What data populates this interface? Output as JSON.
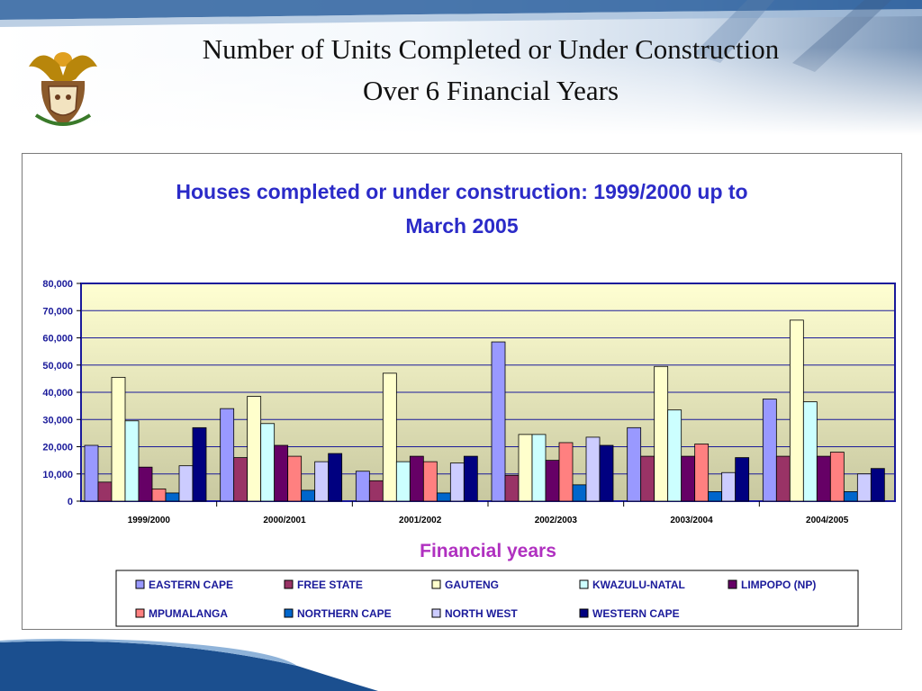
{
  "slide": {
    "title_line1": "Number of Units Completed or Under Construction",
    "title_line2": "Over 6 Financial Years"
  },
  "emblem": {
    "icon": "coat-of-arms-icon"
  },
  "colors": {
    "title_blue": "#2b2bc8",
    "plot_top": "#ffffd2",
    "plot_bottom": "#c8c8a0",
    "grid": "#1a1a9a"
  },
  "chart_data": {
    "type": "bar",
    "title": "Houses completed or under construction:  1999/2000 up to March 2005",
    "title_line1": "Houses completed or under construction:  1999/2000 up to",
    "title_line2": "March 2005",
    "xlabel": "Financial years",
    "ylabel": "",
    "ylim": [
      0,
      80000
    ],
    "yticks": [
      0,
      10000,
      20000,
      30000,
      40000,
      50000,
      60000,
      70000,
      80000
    ],
    "ytick_labels": [
      "0",
      "10,000",
      "20,000",
      "30,000",
      "40,000",
      "50,000",
      "60,000",
      "70,000",
      "80,000"
    ],
    "grid": true,
    "legend_position": "bottom",
    "categories": [
      "1999/2000",
      "2000/2001",
      "2001/2002",
      "2002/2003",
      "2003/2004",
      "2004/2005"
    ],
    "series": [
      {
        "name": "EASTERN CAPE",
        "color": "#9999ff",
        "values": [
          20500,
          34000,
          11000,
          58500,
          27000,
          37500
        ]
      },
      {
        "name": "FREE STATE",
        "color": "#993366",
        "values": [
          7000,
          16000,
          7500,
          9500,
          16500,
          16500
        ]
      },
      {
        "name": "GAUTENG",
        "color": "#ffffcc",
        "values": [
          45500,
          38500,
          47000,
          24500,
          49500,
          66500
        ]
      },
      {
        "name": "KWAZULU-NATAL",
        "color": "#ccffff",
        "values": [
          29500,
          28500,
          14500,
          24500,
          33500,
          36500
        ]
      },
      {
        "name": "LIMPOPO (NP)",
        "color": "#660066",
        "values": [
          12500,
          20500,
          16500,
          15000,
          16500,
          16500
        ]
      },
      {
        "name": "MPUMALANGA",
        "color": "#ff8080",
        "values": [
          4500,
          16500,
          14500,
          21500,
          21000,
          18000
        ]
      },
      {
        "name": "NORTHERN CAPE",
        "color": "#0066cc",
        "values": [
          3000,
          4000,
          3000,
          6000,
          3500,
          3500
        ]
      },
      {
        "name": "NORTH WEST",
        "color": "#ccccff",
        "values": [
          13000,
          14500,
          14000,
          23500,
          10500,
          10000
        ]
      },
      {
        "name": "WESTERN CAPE",
        "color": "#000080",
        "values": [
          27000,
          17500,
          16500,
          20500,
          16000,
          12000
        ]
      }
    ]
  }
}
